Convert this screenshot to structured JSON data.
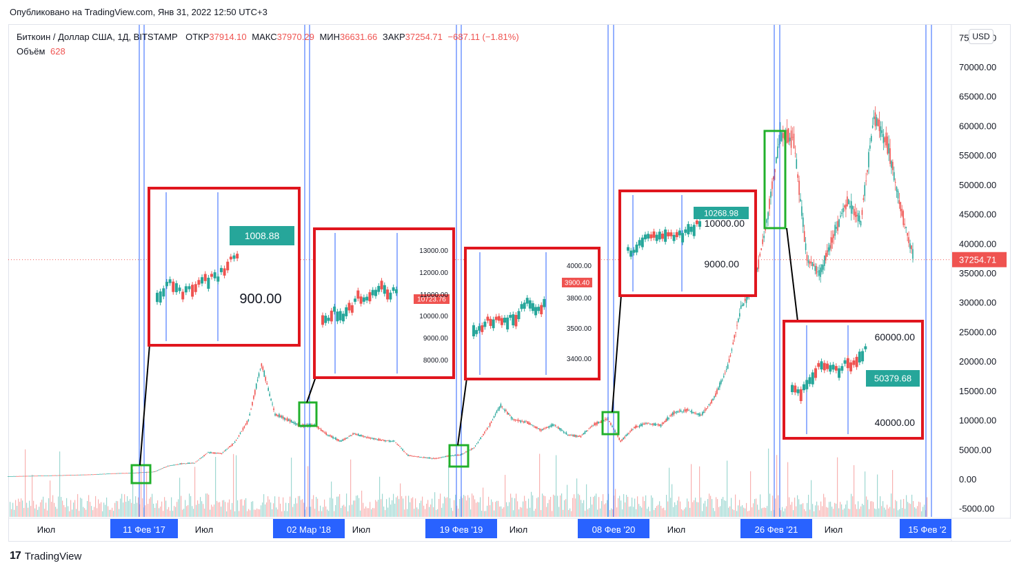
{
  "header": {
    "published": "Опубликовано на TradingView.com, Янв 31, 2022 12:50 UTC+3"
  },
  "legend": {
    "symbol": "Биткоин / Доллар США, 1Д, BITSTAMP",
    "open_label": "ОТКР",
    "open_value": "37914.10",
    "high_label": "МАКС",
    "high_value": "37970.29",
    "low_label": "МИН",
    "low_value": "36631.66",
    "close_label": "ЗАКР",
    "close_value": "37254.71",
    "change": "−687.11 (−1.81%)",
    "volume_label": "Объём",
    "volume_value": "628"
  },
  "currency": "USD",
  "footer": {
    "brand": "TradingView"
  },
  "colors": {
    "up": "#26a69a",
    "down": "#ef5350",
    "vline": "#2962ff",
    "box_red": "#e0161e",
    "box_green": "#21b02b",
    "date_badge": "#2962ff"
  },
  "chart_data": {
    "type": "candlestick",
    "y_axis": {
      "ticks": [
        "75000.00",
        "70000.00",
        "65000.00",
        "60000.00",
        "55000.00",
        "50000.00",
        "45000.00",
        "40000.00",
        "35000.00",
        "30000.00",
        "25000.00",
        "20000.00",
        "15000.00",
        "10000.00",
        "5000.00",
        "0.00",
        "-5000.00"
      ],
      "tick_values": [
        75000,
        70000,
        65000,
        60000,
        55000,
        50000,
        45000,
        40000,
        35000,
        30000,
        25000,
        20000,
        15000,
        10000,
        5000,
        0,
        -5000
      ],
      "ylim": [
        -5000,
        75000
      ],
      "last_price_label": "37254.71",
      "last_price": 37254.71
    },
    "x_axis": {
      "labels": [
        {
          "text": "Июл",
          "highlight": false
        },
        {
          "text": "11 Фев '17",
          "highlight": true
        },
        {
          "text": "Июл",
          "highlight": false
        },
        {
          "text": "02 Мар '18",
          "highlight": true
        },
        {
          "text": "Июл",
          "highlight": false
        },
        {
          "text": "19 Фев '19",
          "highlight": true
        },
        {
          "text": "Июл",
          "highlight": false
        },
        {
          "text": "08 Фев '20",
          "highlight": true
        },
        {
          "text": "Июл",
          "highlight": false
        },
        {
          "text": "26 Фев '21",
          "highlight": true
        },
        {
          "text": "Июл",
          "highlight": false
        },
        {
          "text": "15 Фев '2",
          "highlight": true
        }
      ],
      "start": "2016-05",
      "end": "2022-01-31"
    },
    "series": [
      {
        "points": [
          [
            "2016-05",
            450
          ],
          [
            "2016-08",
            580
          ],
          [
            "2016-11",
            740
          ],
          [
            "2017-01",
            950
          ],
          [
            "2017-02",
            1010
          ],
          [
            "2017-03",
            1100
          ],
          [
            "2017-04",
            1250
          ],
          [
            "2017-05",
            2200
          ],
          [
            "2017-06",
            2600
          ],
          [
            "2017-07",
            2700
          ],
          [
            "2017-08",
            4500
          ],
          [
            "2017-09",
            4300
          ],
          [
            "2017-10",
            6200
          ],
          [
            "2017-11",
            10000
          ],
          [
            "2017-12",
            19500
          ],
          [
            "2018-01",
            11000
          ],
          [
            "2018-02",
            10000
          ],
          [
            "2018-03",
            9000
          ],
          [
            "2018-04",
            9200
          ],
          [
            "2018-05",
            7500
          ],
          [
            "2018-06",
            6400
          ],
          [
            "2018-07",
            7700
          ],
          [
            "2018-08",
            7000
          ],
          [
            "2018-09",
            6600
          ],
          [
            "2018-10",
            6400
          ],
          [
            "2018-11",
            4000
          ],
          [
            "2018-12",
            3700
          ],
          [
            "2019-01",
            3450
          ],
          [
            "2019-02",
            3900
          ],
          [
            "2019-03",
            4100
          ],
          [
            "2019-04",
            5300
          ],
          [
            "2019-05",
            8500
          ],
          [
            "2019-06",
            12500
          ],
          [
            "2019-07",
            10000
          ],
          [
            "2019-08",
            9600
          ],
          [
            "2019-09",
            8300
          ],
          [
            "2019-10",
            9200
          ],
          [
            "2019-11",
            7500
          ],
          [
            "2019-12",
            7200
          ],
          [
            "2020-01",
            9300
          ],
          [
            "2020-02",
            10200
          ],
          [
            "2020-03",
            6400
          ],
          [
            "2020-04",
            8700
          ],
          [
            "2020-05",
            9500
          ],
          [
            "2020-06",
            9100
          ],
          [
            "2020-07",
            11300
          ],
          [
            "2020-08",
            11700
          ],
          [
            "2020-09",
            10800
          ],
          [
            "2020-10",
            13800
          ],
          [
            "2020-11",
            19000
          ],
          [
            "2020-12",
            29000
          ],
          [
            "2021-01",
            33000
          ],
          [
            "2021-02",
            45000
          ],
          [
            "2021-03",
            58800
          ],
          [
            "2021-04",
            57700
          ],
          [
            "2021-05",
            37300
          ],
          [
            "2021-06",
            35000
          ],
          [
            "2021-07",
            41500
          ],
          [
            "2021-08",
            47100
          ],
          [
            "2021-09",
            43800
          ],
          [
            "2021-10",
            61300
          ],
          [
            "2021-11",
            57000
          ],
          [
            "2021-12",
            46200
          ],
          [
            "2022-01",
            37254.71
          ]
        ]
      }
    ],
    "markers": [
      {
        "date": "2017-02-11",
        "label": "11 Фев '17"
      },
      {
        "date": "2018-03-02",
        "label": "02 Мар '18"
      },
      {
        "date": "2019-02-19",
        "label": "19 Фев '19"
      },
      {
        "date": "2020-02-08",
        "label": "08 Фев '20"
      },
      {
        "date": "2021-02-26",
        "label": "26 Фев '21"
      },
      {
        "date": "2022-02-15",
        "label": "15 Фев '2"
      }
    ],
    "insets": [
      {
        "price_labels": [
          "1008.88",
          "900.00"
        ],
        "last_label": "1008.88",
        "last_color": "up"
      },
      {
        "price_labels": [
          "13000.00",
          "12000.00",
          "11000.00",
          "10000.00",
          "9000.00",
          "8000.00"
        ],
        "last_label": "10723.76",
        "last_color": "down"
      },
      {
        "price_labels": [
          "4000.00",
          "3900.40",
          "3800.00",
          "3500.00",
          "3400.00"
        ],
        "last_label": "3900.40",
        "last_color": "down"
      },
      {
        "price_labels": [
          "10268.98",
          "10000.00",
          "9000.00"
        ],
        "last_label": "10268.98",
        "last_color": "up"
      },
      {
        "price_labels": [
          "60000.00",
          "50379.68",
          "40000.00"
        ],
        "last_label": "50379.68",
        "last_color": "up"
      }
    ]
  }
}
